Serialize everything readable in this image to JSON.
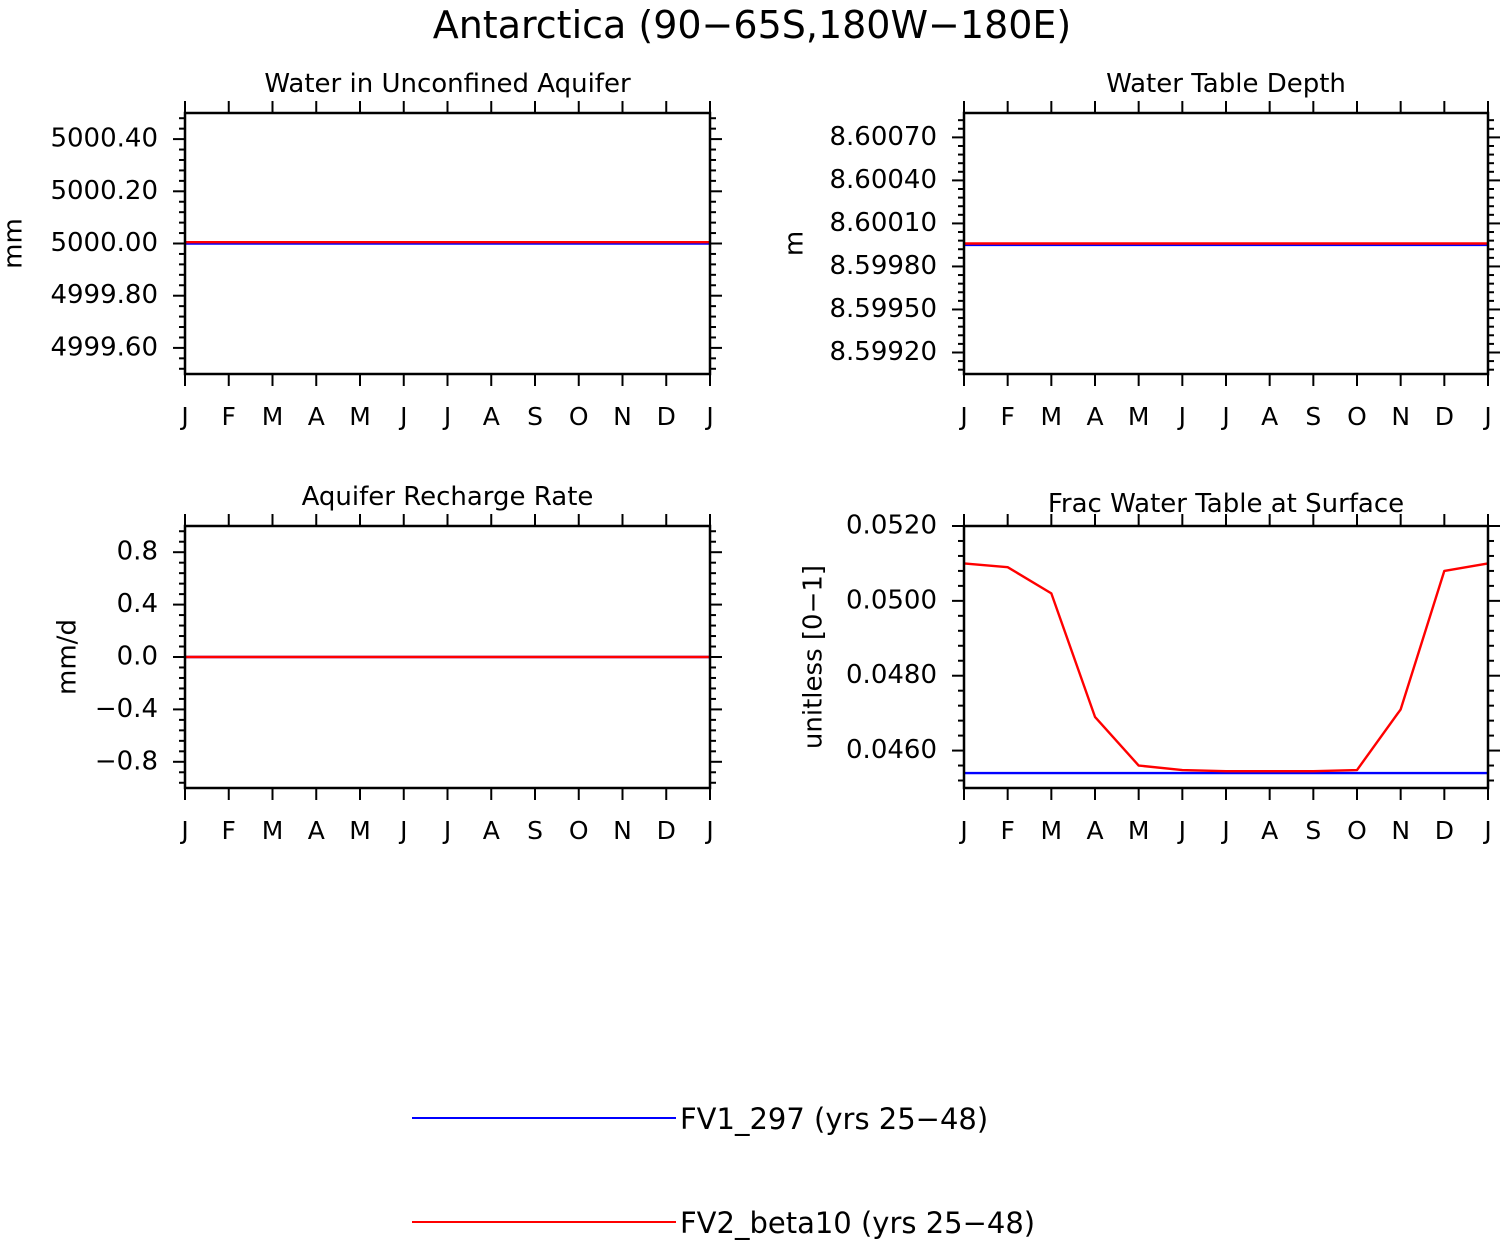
{
  "page_title": "Antarctica (90−65S,180W−180E)",
  "colors": {
    "series_1": "#0000ff",
    "series_2": "#ff0000",
    "axis": "#000000"
  },
  "legend": [
    {
      "label": "FV1_297 (yrs 25−48)",
      "color": "#0000ff"
    },
    {
      "label": "FV2_beta10 (yrs 25−48)",
      "color": "#ff0000"
    }
  ],
  "chart_data": [
    {
      "type": "line",
      "title": "Water in Unconfined Aquifer",
      "ylabel": "mm",
      "xlabel": "",
      "x": [
        1,
        2,
        3,
        4,
        5,
        6,
        7,
        8,
        9,
        10,
        11,
        12,
        13
      ],
      "xticks": [
        "J",
        "F",
        "M",
        "A",
        "M",
        "J",
        "J",
        "A",
        "S",
        "O",
        "N",
        "D",
        "J"
      ],
      "ylim": [
        4999.5,
        5000.5
      ],
      "yticks": [
        4999.6,
        4999.8,
        5000.0,
        5000.2,
        5000.4
      ],
      "ytick_labels": [
        "4999.60",
        "4999.80",
        "5000.00",
        "5000.20",
        "5000.40"
      ],
      "series": [
        {
          "name": "FV1_297 (yrs 25−48)",
          "color": "#0000ff",
          "values": [
            5000.0,
            5000.0,
            5000.0,
            5000.0,
            5000.0,
            5000.0,
            5000.0,
            5000.0,
            5000.0,
            5000.0,
            5000.0,
            5000.0,
            5000.0
          ]
        },
        {
          "name": "FV2_beta10 (yrs 25−48)",
          "color": "#ff0000",
          "values": [
            5000.005,
            5000.005,
            5000.005,
            5000.005,
            5000.005,
            5000.005,
            5000.005,
            5000.005,
            5000.005,
            5000.005,
            5000.005,
            5000.005,
            5000.005
          ]
        }
      ]
    },
    {
      "type": "line",
      "title": "Water Table Depth",
      "ylabel": "m",
      "xlabel": "",
      "x": [
        1,
        2,
        3,
        4,
        5,
        6,
        7,
        8,
        9,
        10,
        11,
        12,
        13
      ],
      "xticks": [
        "J",
        "F",
        "M",
        "A",
        "M",
        "J",
        "J",
        "A",
        "S",
        "O",
        "N",
        "D",
        "J"
      ],
      "ylim": [
        8.59905,
        8.60087
      ],
      "yticks": [
        8.5992,
        8.5995,
        8.5998,
        8.6001,
        8.6004,
        8.6007
      ],
      "ytick_labels": [
        "8.59920",
        "8.59950",
        "8.59980",
        "8.60010",
        "8.60040",
        "8.60070"
      ],
      "series": [
        {
          "name": "FV1_297 (yrs 25−48)",
          "color": "#0000ff",
          "values": [
            8.59995,
            8.59995,
            8.59995,
            8.59995,
            8.59995,
            8.59995,
            8.59995,
            8.59995,
            8.59995,
            8.59995,
            8.59995,
            8.59995,
            8.59995
          ]
        },
        {
          "name": "FV2_beta10 (yrs 25−48)",
          "color": "#ff0000",
          "values": [
            8.59996,
            8.59996,
            8.59996,
            8.59996,
            8.59996,
            8.59996,
            8.59996,
            8.59996,
            8.59996,
            8.59996,
            8.59996,
            8.59996,
            8.59996
          ]
        }
      ]
    },
    {
      "type": "line",
      "title": "Aquifer Recharge Rate",
      "ylabel": "mm/d",
      "xlabel": "",
      "x": [
        1,
        2,
        3,
        4,
        5,
        6,
        7,
        8,
        9,
        10,
        11,
        12,
        13
      ],
      "xticks": [
        "J",
        "F",
        "M",
        "A",
        "M",
        "J",
        "J",
        "A",
        "S",
        "O",
        "N",
        "D",
        "J"
      ],
      "ylim": [
        -1.0,
        1.0
      ],
      "yticks": [
        -0.8,
        -0.4,
        0.0,
        0.4,
        0.8
      ],
      "ytick_labels": [
        "−0.8",
        "−0.4",
        "0.0",
        "0.4",
        "0.8"
      ],
      "series": [
        {
          "name": "FV1_297 (yrs 25−48)",
          "color": "#0000ff",
          "values": [
            0,
            0,
            0,
            0,
            0,
            0,
            0,
            0,
            0,
            0,
            0,
            0,
            0
          ]
        },
        {
          "name": "FV2_beta10 (yrs 25−48)",
          "color": "#ff0000",
          "values": [
            0,
            0,
            0,
            0,
            0,
            0,
            0,
            0,
            0,
            0,
            0,
            0,
            0
          ]
        }
      ]
    },
    {
      "type": "line",
      "title": "Frac Water Table at Surface",
      "ylabel": "unitless [0−1]",
      "xlabel": "",
      "x": [
        1,
        2,
        3,
        4,
        5,
        6,
        7,
        8,
        9,
        10,
        11,
        12,
        13
      ],
      "xticks": [
        "J",
        "F",
        "M",
        "A",
        "M",
        "J",
        "J",
        "A",
        "S",
        "O",
        "N",
        "D",
        "J"
      ],
      "ylim": [
        0.045,
        0.052
      ],
      "yticks": [
        0.046,
        0.048,
        0.05,
        0.052
      ],
      "ytick_labels": [
        "0.0460",
        "0.0480",
        "0.0500",
        "0.0520"
      ],
      "series": [
        {
          "name": "FV1_297 (yrs 25−48)",
          "color": "#0000ff",
          "values": [
            0.0454,
            0.0454,
            0.0454,
            0.0454,
            0.0454,
            0.0454,
            0.0454,
            0.0454,
            0.0454,
            0.0454,
            0.0454,
            0.0454,
            0.0454
          ]
        },
        {
          "name": "FV2_beta10 (yrs 25−48)",
          "color": "#ff0000",
          "values": [
            0.051,
            0.0509,
            0.0502,
            0.0469,
            0.0456,
            0.04548,
            0.04545,
            0.04545,
            0.04545,
            0.04548,
            0.0471,
            0.0508,
            0.051
          ]
        }
      ]
    }
  ]
}
